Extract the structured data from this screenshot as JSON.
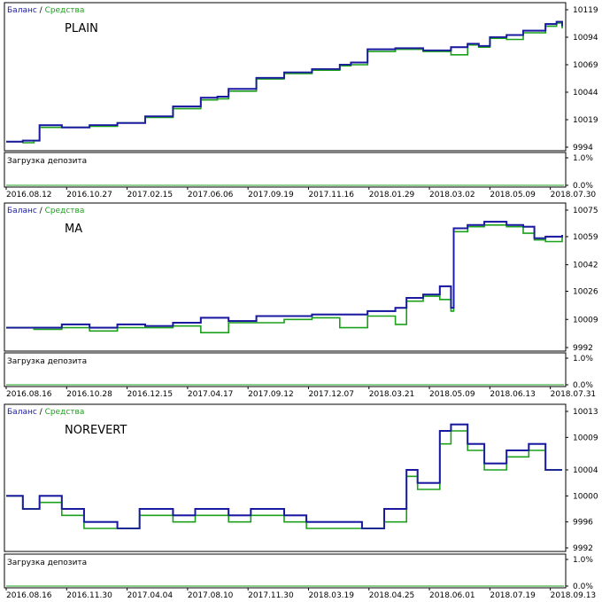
{
  "legend": {
    "balance": "Баланс",
    "separator": "/",
    "equity": "Средства",
    "balance_color": "#1a1aa0",
    "equity_color": "#1ca01c"
  },
  "chart_data": [
    {
      "type": "line",
      "title": "PLAIN",
      "ylim": [
        9994,
        10119
      ],
      "y_ticks": [
        "10119",
        "10094",
        "10069",
        "10044",
        "10019",
        "9994"
      ],
      "x_ticks": [
        "2016.08.12",
        "2016.10.27",
        "2017.02.15",
        "2017.06.06",
        "2017.09.19",
        "2017.11.16",
        "2018.01.29",
        "2018.03.02",
        "2018.05.09",
        "2018.07.30"
      ],
      "series": [
        {
          "name": "Баланс",
          "x": [
            0,
            0.03,
            0.05,
            0.06,
            0.1,
            0.15,
            0.2,
            0.25,
            0.3,
            0.35,
            0.38,
            0.4,
            0.45,
            0.5,
            0.55,
            0.6,
            0.62,
            0.65,
            0.7,
            0.75,
            0.8,
            0.83,
            0.85,
            0.87,
            0.9,
            0.93,
            0.97,
            0.99,
            1.0
          ],
          "values": [
            9999,
            10000,
            10000,
            10014,
            10012,
            10014,
            10016,
            10022,
            10031,
            10039,
            10040,
            10047,
            10057,
            10062,
            10065,
            10069,
            10071,
            10083,
            10084,
            10082,
            10085,
            10088,
            10086,
            10094,
            10096,
            10100,
            10106,
            10108,
            10104
          ]
        },
        {
          "name": "Средства",
          "x": [
            0,
            0.03,
            0.05,
            0.06,
            0.1,
            0.15,
            0.2,
            0.25,
            0.3,
            0.35,
            0.38,
            0.4,
            0.45,
            0.5,
            0.55,
            0.6,
            0.62,
            0.65,
            0.7,
            0.75,
            0.8,
            0.83,
            0.85,
            0.87,
            0.9,
            0.93,
            0.97,
            0.99,
            1.0
          ],
          "values": [
            9999,
            9998,
            10000,
            10012,
            10012,
            10013,
            10016,
            10021,
            10029,
            10037,
            10038,
            10045,
            10056,
            10061,
            10064,
            10068,
            10069,
            10081,
            10083,
            10081,
            10078,
            10087,
            10085,
            10093,
            10092,
            10098,
            10104,
            10107,
            10102
          ]
        }
      ],
      "sub": {
        "label": "Загрузка депозита",
        "ticks": [
          "1.0%",
          "0.0%"
        ]
      }
    },
    {
      "type": "line",
      "title": "MA",
      "ylim": [
        9992,
        10075
      ],
      "y_ticks": [
        "10075",
        "10059",
        "10042",
        "10026",
        "10009",
        "9992"
      ],
      "x_ticks": [
        "2016.08.16",
        "2016.10.28",
        "2016.12.15",
        "2017.04.17",
        "2017.09.12",
        "2017.12.07",
        "2018.03.21",
        "2018.05.09",
        "2018.06.13",
        "2018.07.31"
      ],
      "series": [
        {
          "name": "Баланс",
          "x": [
            0,
            0.05,
            0.1,
            0.15,
            0.2,
            0.25,
            0.3,
            0.35,
            0.4,
            0.45,
            0.5,
            0.55,
            0.6,
            0.65,
            0.7,
            0.72,
            0.75,
            0.78,
            0.8,
            0.805,
            0.83,
            0.86,
            0.9,
            0.93,
            0.95,
            0.97,
            1.0
          ],
          "values": [
            10004,
            10004,
            10006,
            10004,
            10006,
            10005,
            10007,
            10010,
            10008,
            10011,
            10011,
            10012,
            10012,
            10014,
            10016,
            10022,
            10024,
            10029,
            10016,
            10064,
            10066,
            10068,
            10066,
            10065,
            10058,
            10059,
            10060
          ]
        },
        {
          "name": "Средства",
          "x": [
            0,
            0.05,
            0.1,
            0.15,
            0.2,
            0.25,
            0.3,
            0.35,
            0.4,
            0.45,
            0.5,
            0.55,
            0.6,
            0.65,
            0.7,
            0.72,
            0.75,
            0.78,
            0.8,
            0.805,
            0.83,
            0.86,
            0.9,
            0.93,
            0.95,
            0.97,
            1.0
          ],
          "values": [
            10004,
            10003,
            10004,
            10002,
            10004,
            10004,
            10005,
            10001,
            10007,
            10007,
            10009,
            10010,
            10004,
            10011,
            10006,
            10020,
            10023,
            10021,
            10014,
            10062,
            10065,
            10066,
            10065,
            10061,
            10057,
            10056,
            10059
          ]
        }
      ],
      "sub": {
        "label": "Загрузка депозита",
        "ticks": [
          "1.0%",
          "0.0%"
        ]
      }
    },
    {
      "type": "line",
      "title": "NOREVERT",
      "ylim": [
        9992,
        10013
      ],
      "y_ticks": [
        "10013",
        "10009",
        "10004",
        "10000",
        "9996",
        "9992"
      ],
      "x_ticks": [
        "2016.08.16",
        "2016.11.30",
        "2017.04.04",
        "2017.08.10",
        "2017.11.30",
        "2018.03.19",
        "2018.04.25",
        "2018.06.01",
        "2018.07.19",
        "2018.09.13"
      ],
      "series": [
        {
          "name": "Баланс",
          "x": [
            0,
            0.03,
            0.06,
            0.1,
            0.14,
            0.2,
            0.24,
            0.3,
            0.34,
            0.4,
            0.44,
            0.5,
            0.54,
            0.6,
            0.64,
            0.68,
            0.72,
            0.74,
            0.78,
            0.8,
            0.83,
            0.86,
            0.9,
            0.94,
            0.97,
            1.0
          ],
          "values": [
            10000,
            9998,
            10000,
            9998,
            9996,
            9995,
            9998,
            9997,
            9998,
            9997,
            9998,
            9997,
            9996,
            9996,
            9995,
            9998,
            10004,
            10002,
            10010,
            10011,
            10008,
            10005,
            10007,
            10008,
            10004,
            10004
          ]
        },
        {
          "name": "Средства",
          "x": [
            0,
            0.03,
            0.06,
            0.1,
            0.14,
            0.2,
            0.24,
            0.3,
            0.34,
            0.4,
            0.44,
            0.5,
            0.54,
            0.6,
            0.64,
            0.68,
            0.72,
            0.74,
            0.78,
            0.8,
            0.83,
            0.86,
            0.9,
            0.94,
            0.97,
            1.0
          ],
          "values": [
            10000,
            9998,
            9999,
            9997,
            9995,
            9995,
            9997,
            9996,
            9997,
            9996,
            9997,
            9996,
            9995,
            9995,
            9995,
            9996,
            10003,
            10001,
            10008,
            10010,
            10007,
            10004,
            10006,
            10007,
            10004,
            10004
          ]
        }
      ],
      "sub": {
        "label": "Загрузка депозита",
        "ticks": [
          "1.0%",
          "0.0%"
        ]
      }
    }
  ]
}
